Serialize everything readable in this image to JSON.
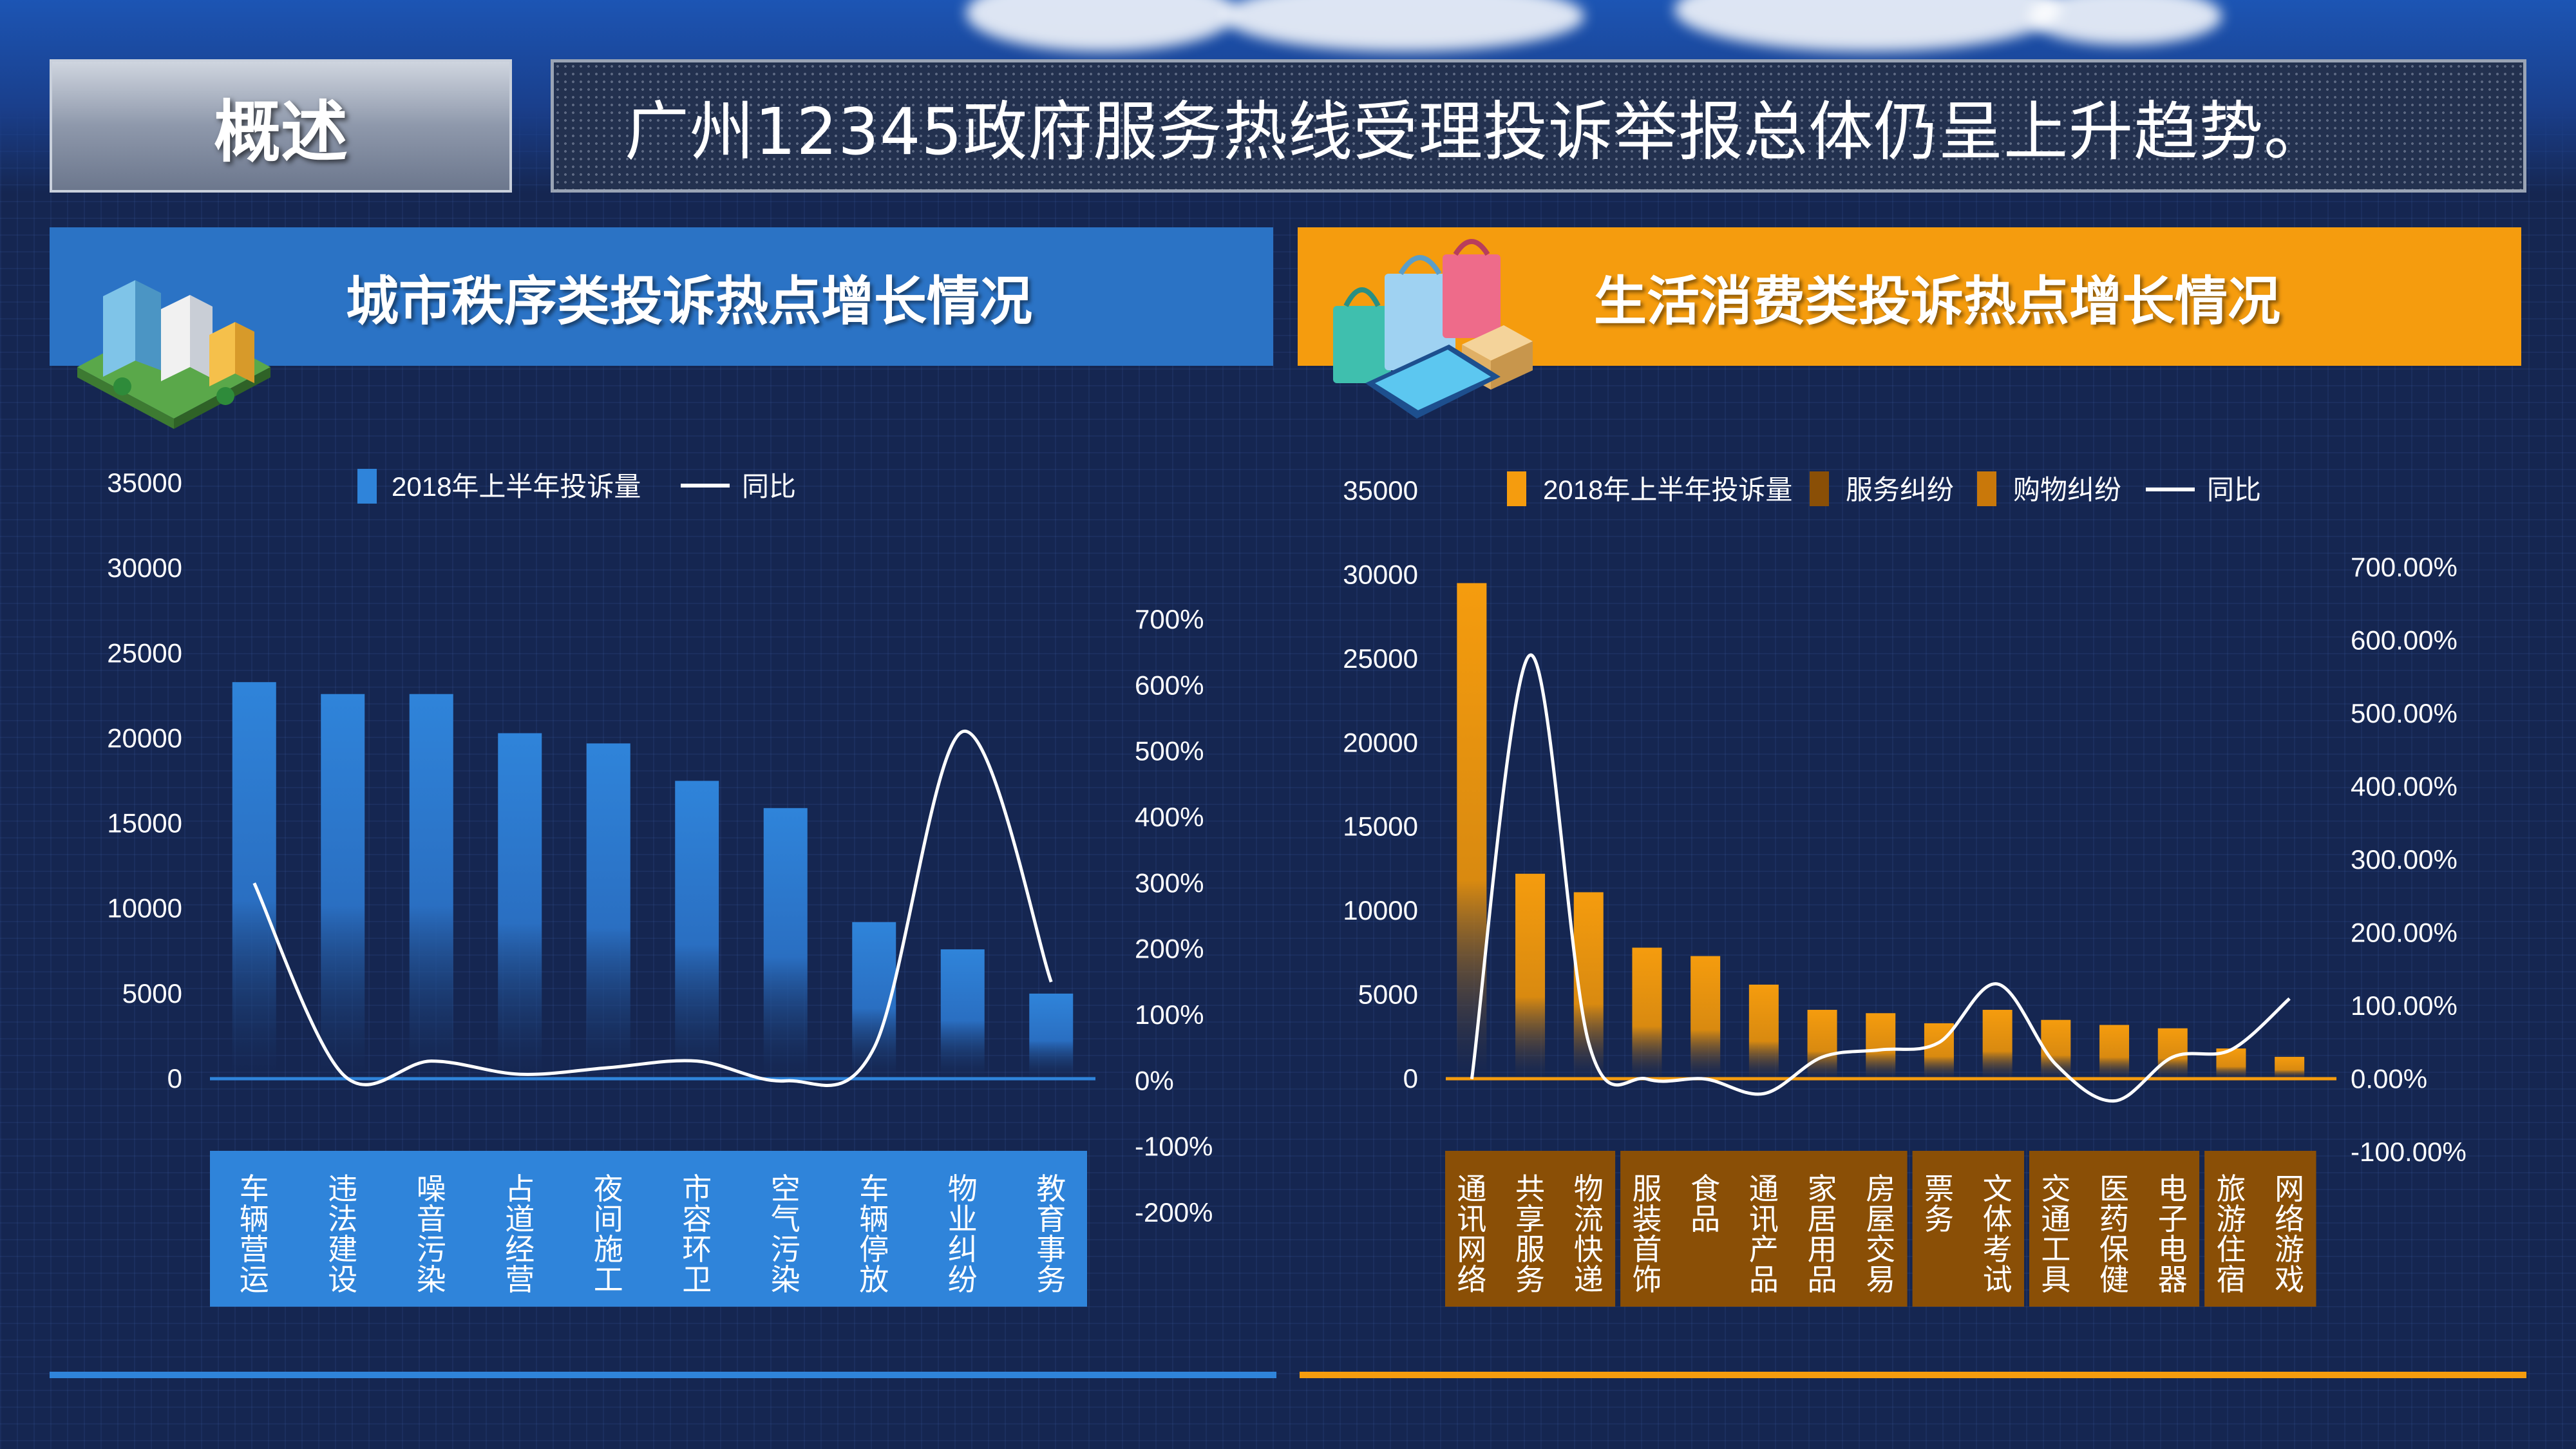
{
  "header": {
    "tab_label": "概述",
    "headline": "广州12345政府服务热线受理投诉举报总体仍呈上升趋势。"
  },
  "left_panel": {
    "title": "城市秩序类投诉热点增长情况"
  },
  "right_panel": {
    "title": "生活消费类投诉热点增长情况"
  },
  "icons": [
    "city-buildings-icon",
    "shopping-bags-phone-icon"
  ],
  "colors": {
    "blue": "#2f7fd6",
    "orange": "#f59c0e",
    "dark_orange": "#8a4f06",
    "line": "#ffffff",
    "background": "#152651"
  },
  "chart_data": [
    {
      "type": "bar",
      "categories": [
        "车辆营运",
        "违法建设",
        "噪音污染",
        "占道经营",
        "夜间施工",
        "市容环卫",
        "空气污染",
        "车辆停放",
        "物业纠纷",
        "教育事务"
      ],
      "series": [
        {
          "name": "2018年上半年投诉量",
          "type": "bar",
          "axis": "left",
          "values": [
            23300,
            22600,
            22600,
            20300,
            19700,
            17500,
            15900,
            9200,
            7600,
            5000
          ]
        },
        {
          "name": "同比",
          "type": "line",
          "axis": "right",
          "values": [
            300,
            10,
            30,
            10,
            20,
            30,
            0,
            50,
            530,
            150
          ]
        }
      ],
      "y_left": {
        "range": [
          0,
          35000
        ],
        "ticks": [
          "35000",
          "30000",
          "25000",
          "20000",
          "15000",
          "10000",
          "5000",
          "0"
        ]
      },
      "y_right": {
        "range": [
          -200,
          700
        ],
        "ticks": [
          "700%",
          "600%",
          "500%",
          "400%",
          "300%",
          "200%",
          "100%",
          "0%",
          "-100%",
          "-200%"
        ]
      },
      "legend_position": "top"
    },
    {
      "type": "bar",
      "categories": [
        "通讯网络",
        "共享服务",
        "物流快递",
        "服装首饰",
        "食品",
        "通讯产品",
        "家居用品",
        "房屋交易",
        "票务",
        "文体考试",
        "交通工具",
        "医药保健",
        "电子电器",
        "旅游住宿",
        "网络游戏"
      ],
      "category_groups": [
        {
          "name": "2018年上半年投诉量",
          "categories": [
            "通讯网络",
            "共享服务",
            "物流快递"
          ]
        },
        {
          "name": "服务纠纷",
          "categories": [
            "服装首饰",
            "食品",
            "通讯产品",
            "家居用品",
            "房屋交易"
          ]
        },
        {
          "name": "购物纠纷",
          "categories": [
            "票务",
            "文体考试"
          ]
        },
        {
          "categories": [
            "交通工具",
            "医药保健",
            "电子电器"
          ]
        },
        {
          "categories": [
            "旅游住宿",
            "网络游戏"
          ]
        }
      ],
      "series": [
        {
          "name": "2018年上半年投诉量",
          "type": "bar",
          "axis": "left",
          "values": [
            29500,
            12200,
            11100,
            7800,
            7300,
            5600,
            4100,
            3900,
            3300,
            4100,
            3500,
            3200,
            3000,
            1800,
            1300
          ]
        },
        {
          "name": "服务纠纷",
          "type": "legend-only"
        },
        {
          "name": "购物纠纷",
          "type": "legend-only"
        },
        {
          "name": "同比",
          "type": "line",
          "axis": "right",
          "values": [
            0,
            580,
            50,
            0,
            0,
            -20,
            30,
            40,
            50,
            130,
            20,
            -30,
            30,
            40,
            110
          ]
        }
      ],
      "y_left": {
        "range": [
          0,
          35000
        ],
        "ticks": [
          "35000",
          "30000",
          "25000",
          "20000",
          "15000",
          "10000",
          "5000",
          "0"
        ]
      },
      "y_right": {
        "range": [
          -100,
          700
        ],
        "ticks": [
          "700.00%",
          "600.00%",
          "500.00%",
          "400.00%",
          "300.00%",
          "200.00%",
          "100.00%",
          "0.00%",
          "-100.00%"
        ]
      },
      "legend_position": "top"
    }
  ]
}
